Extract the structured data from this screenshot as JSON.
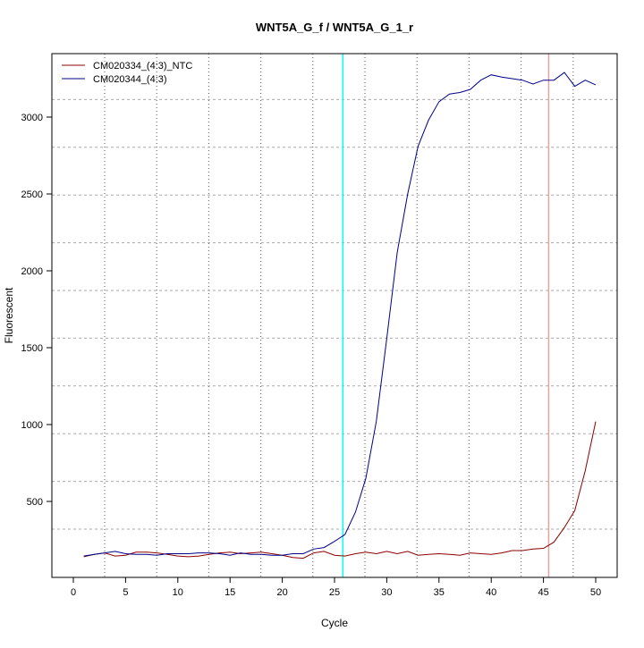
{
  "chart_data": {
    "type": "line",
    "title": "WNT5A_G_f / WNT5A_G_1_r",
    "xlabel": "Cycle",
    "ylabel": "Fluorescent",
    "xlim": [
      -2,
      52
    ],
    "ylim": [
      6,
      3413
    ],
    "x_ticks": [
      0,
      5,
      10,
      15,
      20,
      25,
      30,
      35,
      40,
      45,
      50
    ],
    "y_ticks": [
      500,
      1000,
      1500,
      2000,
      2500,
      3000
    ],
    "grid": true,
    "legend_position": "top-left",
    "x": [
      1,
      2,
      3,
      4,
      5,
      6,
      7,
      8,
      9,
      10,
      11,
      12,
      13,
      14,
      15,
      16,
      17,
      18,
      19,
      20,
      21,
      22,
      23,
      24,
      25,
      26,
      27,
      28,
      29,
      30,
      31,
      32,
      33,
      34,
      35,
      36,
      37,
      38,
      39,
      40,
      41,
      42,
      43,
      44,
      45,
      46,
      47,
      48,
      49,
      50
    ],
    "series": [
      {
        "name": "CM020334_(4:3)_NTC",
        "color": "#8b0000",
        "values": [
          140,
          155,
          165,
          145,
          150,
          170,
          170,
          165,
          155,
          145,
          140,
          145,
          155,
          165,
          170,
          160,
          165,
          170,
          160,
          150,
          135,
          130,
          165,
          175,
          150,
          145,
          160,
          170,
          160,
          175,
          160,
          175,
          150,
          155,
          160,
          155,
          150,
          165,
          160,
          155,
          165,
          180,
          180,
          190,
          195,
          235,
          330,
          440,
          700,
          1020
        ]
      },
      {
        "name": "CM020344_(4:3)",
        "color": "#00008b",
        "values": [
          145,
          155,
          165,
          175,
          160,
          155,
          155,
          150,
          160,
          160,
          160,
          165,
          165,
          160,
          150,
          165,
          155,
          155,
          150,
          150,
          160,
          160,
          190,
          200,
          240,
          285,
          430,
          650,
          1020,
          1560,
          2120,
          2500,
          2810,
          2980,
          3100,
          3150,
          3160,
          3180,
          3240,
          3275,
          3260,
          3250,
          3240,
          3215,
          3240,
          3240,
          3290,
          3200,
          3240,
          3210
        ]
      }
    ],
    "threshold_lines": [
      {
        "x": 25.8,
        "color": "#00ffff"
      },
      {
        "x": 45.5,
        "color": "#e8a0a0"
      }
    ]
  }
}
